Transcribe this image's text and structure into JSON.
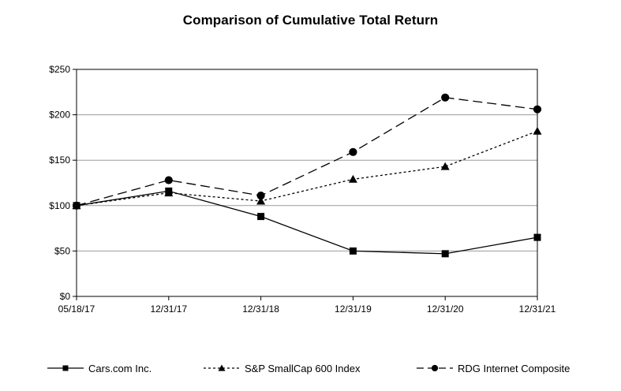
{
  "chart_data": {
    "type": "line",
    "title": "Comparison of Cumulative Total Return",
    "categories": [
      "05/18/17",
      "12/31/17",
      "12/31/18",
      "12/31/19",
      "12/31/20",
      "12/31/21"
    ],
    "y_ticks": [
      "$0",
      "$50",
      "$100",
      "$150",
      "$200",
      "$250"
    ],
    "ylim": [
      0,
      250
    ],
    "y_tick_step": 50,
    "grid": "horizontal",
    "legend_position": "bottom",
    "series": [
      {
        "name": "Cars.com Inc.",
        "marker": "square",
        "dash": "solid",
        "values": [
          100,
          116,
          88,
          50,
          47,
          65
        ]
      },
      {
        "name": "S&P SmallCap 600 Index",
        "marker": "triangle",
        "dash": "dotted",
        "values": [
          100,
          114,
          105,
          129,
          143,
          182
        ]
      },
      {
        "name": "RDG Internet Composite",
        "marker": "circle",
        "dash": "dashed",
        "values": [
          100,
          128,
          111,
          159,
          219,
          206
        ]
      }
    ],
    "colors": {
      "line": "#000000",
      "grid": "#9a9a9a"
    }
  }
}
